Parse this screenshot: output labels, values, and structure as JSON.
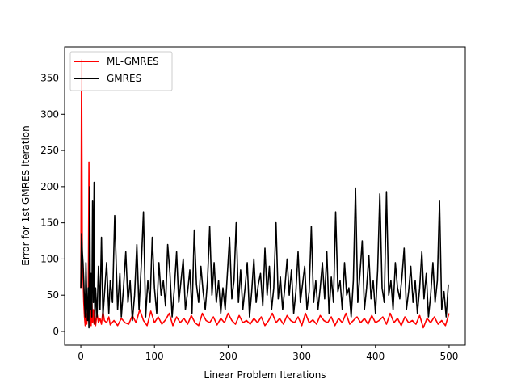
{
  "chart_data": {
    "type": "line",
    "title": "",
    "xlabel": "Linear Problem Iterations",
    "ylabel": "Error for 1st GMRES iteration",
    "xlim": [
      -22,
      522
    ],
    "ylim": [
      -19,
      393
    ],
    "xticks": [
      "0",
      "100",
      "200",
      "300",
      "400",
      "500"
    ],
    "yticks": [
      "0",
      "50",
      "100",
      "150",
      "200",
      "250",
      "300",
      "350"
    ],
    "grid": false,
    "legend": {
      "placement": "top-left",
      "entries": [
        "ML-GMRES",
        "GMRES"
      ]
    },
    "series": [
      {
        "name": "ML-GMRES",
        "color": "#ff0000",
        "x": [
          0,
          1,
          2,
          3,
          4,
          5,
          6,
          7,
          8,
          9,
          10,
          11,
          12,
          13,
          14,
          15,
          16,
          17,
          18,
          19,
          20,
          22,
          24,
          26,
          28,
          30,
          32,
          35,
          38,
          40,
          45,
          50,
          55,
          60,
          65,
          70,
          75,
          80,
          85,
          90,
          95,
          100,
          105,
          110,
          115,
          120,
          125,
          130,
          135,
          140,
          145,
          150,
          155,
          160,
          165,
          170,
          175,
          180,
          185,
          190,
          195,
          200,
          205,
          210,
          215,
          220,
          225,
          230,
          235,
          240,
          245,
          250,
          255,
          260,
          265,
          270,
          275,
          280,
          285,
          290,
          295,
          300,
          305,
          310,
          315,
          320,
          325,
          330,
          335,
          340,
          345,
          350,
          355,
          360,
          365,
          370,
          375,
          380,
          385,
          390,
          395,
          400,
          405,
          410,
          415,
          420,
          425,
          430,
          435,
          440,
          445,
          450,
          455,
          460,
          465,
          470,
          475,
          480,
          485,
          490,
          495,
          500
        ],
        "values": [
          60,
          375,
          100,
          75,
          40,
          20,
          8,
          25,
          10,
          30,
          15,
          234,
          60,
          20,
          8,
          45,
          12,
          30,
          10,
          18,
          8,
          25,
          12,
          18,
          10,
          28,
          15,
          12,
          20,
          9,
          15,
          8,
          18,
          12,
          10,
          22,
          12,
          30,
          15,
          8,
          28,
          12,
          20,
          10,
          16,
          25,
          8,
          20,
          12,
          18,
          10,
          22,
          12,
          8,
          25,
          15,
          12,
          20,
          9,
          18,
          12,
          25,
          15,
          10,
          22,
          12,
          15,
          10,
          18,
          12,
          20,
          8,
          15,
          25,
          12,
          18,
          10,
          22,
          15,
          12,
          20,
          8,
          25,
          12,
          16,
          10,
          22,
          15,
          12,
          20,
          8,
          18,
          12,
          25,
          10,
          15,
          20,
          12,
          18,
          10,
          22,
          12,
          15,
          20,
          10,
          25,
          12,
          18,
          8,
          20,
          12,
          15,
          10,
          22,
          5,
          18,
          12,
          20,
          10,
          15,
          8,
          25
        ]
      },
      {
        "name": "GMRES",
        "color": "#000000",
        "x": [
          0,
          1,
          2,
          3,
          4,
          5,
          6,
          7,
          8,
          9,
          10,
          11,
          12,
          13,
          14,
          15,
          16,
          17,
          18,
          19,
          20,
          22,
          24,
          26,
          28,
          30,
          32,
          35,
          38,
          40,
          43,
          46,
          50,
          53,
          55,
          58,
          61,
          64,
          67,
          70,
          73,
          76,
          79,
          82,
          85,
          88,
          91,
          94,
          97,
          100,
          103,
          106,
          109,
          112,
          115,
          118,
          121,
          124,
          127,
          130,
          133,
          136,
          139,
          142,
          145,
          148,
          151,
          154,
          157,
          160,
          163,
          166,
          169,
          172,
          175,
          178,
          181,
          184,
          187,
          190,
          193,
          196,
          199,
          202,
          205,
          208,
          211,
          214,
          217,
          220,
          223,
          226,
          229,
          232,
          235,
          238,
          241,
          244,
          247,
          250,
          253,
          256,
          259,
          262,
          265,
          268,
          271,
          274,
          277,
          280,
          283,
          286,
          289,
          292,
          295,
          298,
          301,
          304,
          307,
          310,
          313,
          316,
          319,
          322,
          325,
          328,
          331,
          334,
          337,
          340,
          343,
          346,
          349,
          352,
          355,
          358,
          361,
          364,
          367,
          370,
          373,
          376,
          379,
          382,
          385,
          388,
          391,
          394,
          397,
          400,
          403,
          406,
          409,
          412,
          415,
          418,
          421,
          424,
          427,
          430,
          433,
          436,
          439,
          442,
          445,
          448,
          451,
          454,
          457,
          460,
          463,
          466,
          469,
          472,
          475,
          478,
          481,
          484,
          487,
          490,
          493,
          496,
          499
        ],
        "values": [
          60,
          135,
          110,
          95,
          70,
          40,
          20,
          95,
          45,
          15,
          60,
          5,
          200,
          30,
          80,
          20,
          180,
          40,
          206,
          10,
          60,
          20,
          90,
          30,
          130,
          20,
          50,
          95,
          25,
          70,
          40,
          160,
          30,
          80,
          20,
          60,
          110,
          40,
          70,
          15,
          50,
          120,
          30,
          90,
          165,
          20,
          70,
          40,
          130,
          60,
          25,
          95,
          50,
          70,
          35,
          120,
          80,
          20,
          60,
          110,
          40,
          70,
          100,
          30,
          55,
          85,
          25,
          140,
          65,
          40,
          90,
          55,
          30,
          70,
          145,
          50,
          95,
          40,
          70,
          25,
          60,
          30,
          80,
          130,
          45,
          70,
          150,
          40,
          85,
          30,
          60,
          95,
          20,
          55,
          100,
          40,
          65,
          80,
          35,
          115,
          50,
          90,
          30,
          60,
          150,
          45,
          75,
          30,
          60,
          100,
          50,
          85,
          25,
          55,
          110,
          40,
          65,
          90,
          30,
          55,
          145,
          40,
          70,
          30,
          60,
          95,
          45,
          110,
          25,
          75,
          40,
          165,
          55,
          70,
          30,
          95,
          50,
          60,
          20,
          70,
          198,
          40,
          80,
          125,
          30,
          60,
          105,
          45,
          70,
          25,
          85,
          190,
          60,
          40,
          193,
          50,
          70,
          30,
          95,
          60,
          45,
          75,
          115,
          30,
          55,
          90,
          40,
          70,
          25,
          60,
          110,
          45,
          80,
          20,
          50,
          95,
          40,
          70,
          180,
          30,
          55,
          20,
          65
        ]
      }
    ]
  }
}
